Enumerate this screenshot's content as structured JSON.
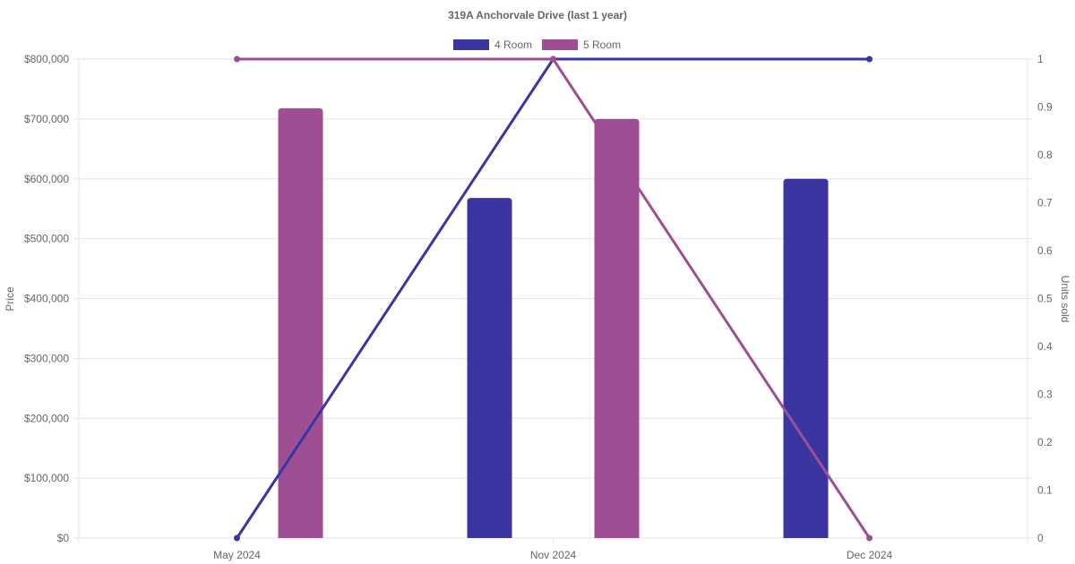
{
  "chart_data": {
    "type": "bar",
    "title": "319A Anchorvale Drive (last 1 year)",
    "categories": [
      "May 2024",
      "Nov 2024",
      "Dec 2024"
    ],
    "ylabel_left": "Price",
    "ylabel_right": "Units sold",
    "y_left_ticks": [
      "$0",
      "$100,000",
      "$200,000",
      "$300,000",
      "$400,000",
      "$500,000",
      "$600,000",
      "$700,000",
      "$800,000"
    ],
    "y_right_ticks": [
      "0",
      "0.1",
      "0.2",
      "0.3",
      "0.4",
      "0.5",
      "0.6",
      "0.7",
      "0.8",
      "0.9",
      "1"
    ],
    "ylim_left": [
      0,
      800000
    ],
    "ylim_right": [
      0,
      1
    ],
    "grid": true,
    "legend_position": "top-center",
    "series": [
      {
        "name": "4 Room",
        "color": "#3a35a0",
        "bar_values": [
          null,
          568000,
          600000
        ],
        "line_values": [
          0,
          1,
          1
        ]
      },
      {
        "name": "5 Room",
        "color": "#9e4f94",
        "bar_values": [
          718000,
          700000,
          null
        ],
        "line_values": [
          1,
          1,
          0
        ]
      }
    ]
  }
}
